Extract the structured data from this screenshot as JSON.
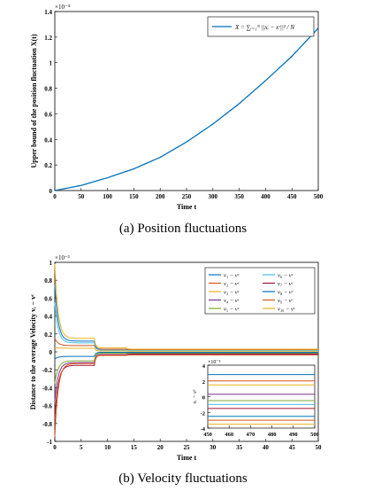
{
  "captions": {
    "top": "(a)  Position fluctuations",
    "bottom": "(b)  Velocity fluctuations"
  },
  "chart_data": [
    {
      "type": "line",
      "xlabel": "Time t",
      "ylabel": "Upper bound of the position fluctuation X(t)",
      "xlim": [
        0,
        500
      ],
      "ylim": [
        0,
        1.4
      ],
      "y_multiplier": "×10⁻⁴",
      "xticks": [
        0,
        50,
        100,
        150,
        200,
        250,
        300,
        350,
        400,
        450,
        500
      ],
      "yticks": [
        0,
        0.2,
        0.4,
        0.6,
        0.8,
        1,
        1.2,
        1.4
      ],
      "legend_position": "top-right",
      "color": "#0072BD",
      "series": [
        {
          "name": "X = ∑ᵢ₌₁ᴺ ||xᵢ − xᶜ||² / N",
          "x": [
            0,
            50,
            100,
            150,
            200,
            250,
            300,
            350,
            400,
            450,
            500
          ],
          "values": [
            0,
            0.04,
            0.1,
            0.17,
            0.26,
            0.38,
            0.52,
            0.68,
            0.86,
            1.05,
            1.27
          ]
        }
      ]
    },
    {
      "type": "line",
      "xlabel": "Time t",
      "ylabel": "Distance to the average Velocity vᵢ − vᶜ",
      "xlim": [
        0,
        50
      ],
      "ylim": [
        -1,
        1
      ],
      "y_multiplier": "×10⁻³",
      "xticks": [
        0,
        5,
        10,
        15,
        20,
        25,
        30,
        35,
        40,
        45,
        50
      ],
      "yticks": [
        -1,
        -0.8,
        -0.6,
        -0.4,
        -0.2,
        0,
        0.2,
        0.4,
        0.6,
        0.8,
        1
      ],
      "legend_position": "top-right",
      "series": [
        {
          "name": "v₁ − vᶜ",
          "color": "#0072BD",
          "values": [
            0.75,
            0.12,
            0.03,
            0.025
          ]
        },
        {
          "name": "v₂ − vᶜ",
          "color": "#D95319",
          "values": [
            0.15,
            0.07,
            0.03,
            0.02
          ]
        },
        {
          "name": "v₃ − vᶜ",
          "color": "#EDB120",
          "values": [
            0.98,
            0.15,
            0.045,
            0.03
          ]
        },
        {
          "name": "v₄ − vᶜ",
          "color": "#7E2F8E",
          "values": [
            -0.55,
            -0.12,
            -0.02,
            -0.02
          ]
        },
        {
          "name": "v₅ − vᶜ",
          "color": "#77AC30",
          "values": [
            -0.35,
            -0.1,
            -0.015,
            -0.012
          ]
        },
        {
          "name": "v₆ − vᶜ",
          "color": "#4DBEEE",
          "values": [
            0.55,
            0.1,
            0.02,
            0.015
          ]
        },
        {
          "name": "v₇ − vᶜ",
          "color": "#A2142F",
          "values": [
            -0.75,
            -0.15,
            -0.035,
            -0.03
          ]
        },
        {
          "name": "v₈ − vᶜ",
          "color": "#0072BD",
          "values": [
            -0.08,
            -0.05,
            -0.005,
            -0.005
          ]
        },
        {
          "name": "v₉ − vᶜ",
          "color": "#D95319",
          "values": [
            -0.95,
            -0.13,
            -0.04,
            -0.035
          ]
        },
        {
          "name": "v₁₀ − vᶜ",
          "color": "#EDB120",
          "values": [
            0.05,
            0.04,
            0.01,
            0.008
          ]
        }
      ],
      "x": [
        0,
        5,
        10,
        50
      ],
      "inset": {
        "xlim": [
          450,
          500
        ],
        "ylim": [
          -4,
          4
        ],
        "y_multiplier": "×10⁻⁵",
        "ylabel": "vᵢ − vᶜ",
        "xticks": [
          450,
          460,
          470,
          480,
          490,
          500
        ],
        "yticks": [
          -4,
          -2,
          0,
          2,
          4
        ],
        "levels": [
          2.8,
          2.0,
          1.5,
          0.3,
          -0.5,
          -1.0,
          -1.5,
          -2.5,
          -3.0,
          -3.5
        ]
      }
    }
  ]
}
